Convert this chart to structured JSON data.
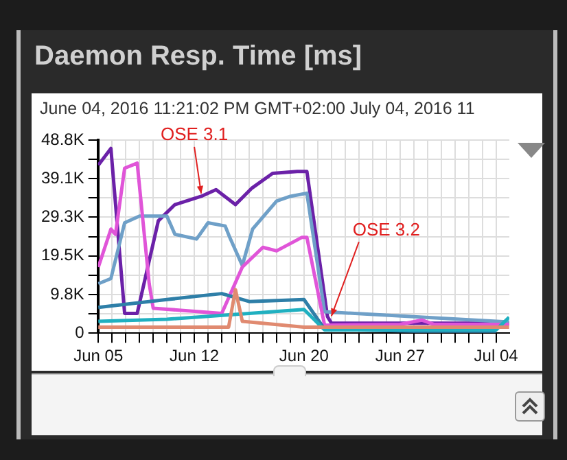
{
  "chart_data": {
    "type": "line",
    "title": "Daemon Resp. Time [ms]",
    "subtitle": "June 04, 2016 11:21:02 PM GMT+02:00 July 04, 2016 11",
    "xlim": [
      "2016-06-04T23:21",
      "2016-07-04T23:21"
    ],
    "xticks": [
      {
        "value": "2016-06-05",
        "label": "Jun 05"
      },
      {
        "value": "2016-06-06",
        "label": null
      },
      {
        "value": "2016-06-07",
        "label": null
      },
      {
        "value": "2016-06-08",
        "label": null
      },
      {
        "value": "2016-06-09",
        "label": null
      },
      {
        "value": "2016-06-10",
        "label": null
      },
      {
        "value": "2016-06-11",
        "label": null
      },
      {
        "value": "2016-06-12",
        "label": "Jun 12"
      },
      {
        "value": "2016-06-13",
        "label": null
      },
      {
        "value": "2016-06-14",
        "label": null
      },
      {
        "value": "2016-06-15",
        "label": null
      },
      {
        "value": "2016-06-16",
        "label": null
      },
      {
        "value": "2016-06-17",
        "label": null
      },
      {
        "value": "2016-06-18",
        "label": null
      },
      {
        "value": "2016-06-19",
        "label": null
      },
      {
        "value": "2016-06-20",
        "label": "Jun 20"
      },
      {
        "value": "2016-06-21",
        "label": null
      },
      {
        "value": "2016-06-22",
        "label": null
      },
      {
        "value": "2016-06-23",
        "label": null
      },
      {
        "value": "2016-06-24",
        "label": null
      },
      {
        "value": "2016-06-25",
        "label": null
      },
      {
        "value": "2016-06-26",
        "label": null
      },
      {
        "value": "2016-06-27",
        "label": "Jun 27"
      },
      {
        "value": "2016-06-28",
        "label": null
      },
      {
        "value": "2016-06-29",
        "label": null
      },
      {
        "value": "2016-06-30",
        "label": null
      },
      {
        "value": "2016-07-01",
        "label": null
      },
      {
        "value": "2016-07-02",
        "label": null
      },
      {
        "value": "2016-07-03",
        "label": null
      },
      {
        "value": "2016-07-04",
        "label": "Jul 04"
      }
    ],
    "ylim": [
      0,
      48830
    ],
    "yticks": [
      {
        "value": 0,
        "label": "0"
      },
      {
        "value": 4883,
        "label": null
      },
      {
        "value": 9766,
        "label": "9.8K"
      },
      {
        "value": 14649,
        "label": null
      },
      {
        "value": 19532,
        "label": "19.5K"
      },
      {
        "value": 24415,
        "label": null
      },
      {
        "value": 29298,
        "label": "29.3K"
      },
      {
        "value": 34181,
        "label": null
      },
      {
        "value": 39064,
        "label": "39.1K"
      },
      {
        "value": 43947,
        "label": null
      },
      {
        "value": 48830,
        "label": "48.8K"
      }
    ],
    "grid": true,
    "legend": false,
    "marker": "none",
    "line_style": "solid",
    "series": [
      {
        "color": "#e08a70",
        "x": [
          "2016-06-05T00:00",
          "2016-06-10T00:00",
          "2016-06-14T12:00",
          "2016-06-15T00:00",
          "2016-06-15T12:00",
          "2016-06-20T00:00",
          "2016-06-25T00:00",
          "2016-07-04T23:00"
        ],
        "values": [
          1500,
          1500,
          1500,
          11000,
          3000,
          1500,
          1500,
          1500
        ]
      },
      {
        "color": "#20b0c0",
        "x": [
          "2016-06-05T00:00",
          "2016-06-10T00:00",
          "2016-06-16T00:00",
          "2016-06-20T00:00",
          "2016-06-21T12:00",
          "2016-06-28T00:00",
          "2016-07-04T00:00",
          "2016-07-04T23:00"
        ],
        "values": [
          3000,
          3500,
          5000,
          6000,
          800,
          800,
          800,
          4000
        ]
      },
      {
        "color": "#2e7fa8",
        "x": [
          "2016-06-05T00:00",
          "2016-06-10T00:00",
          "2016-06-14T00:00",
          "2016-06-16T00:00",
          "2016-06-20T00:00",
          "2016-06-21T12:00",
          "2016-06-28T00:00",
          "2016-07-04T00:00"
        ],
        "values": [
          6500,
          8500,
          10000,
          8000,
          8500,
          1000,
          500,
          500
        ]
      },
      {
        "color": "#e055d8",
        "x": [
          "2016-06-05T00:00",
          "2016-06-05T22:00",
          "2016-06-06T06:00",
          "2016-06-06T22:00",
          "2016-06-07T20:00",
          "2016-06-08T17:00",
          "2016-06-09T00:00",
          "2016-06-14T00:00",
          "2016-06-15T12:00",
          "2016-06-17T00:00",
          "2016-06-18T00:00",
          "2016-06-19T20:00",
          "2016-06-20T05:00",
          "2016-06-21T12:00",
          "2016-06-27T00:00",
          "2016-06-28T14:00",
          "2016-06-29T12:00",
          "2016-07-04T23:00"
        ],
        "values": [
          16700,
          26300,
          25000,
          41700,
          43000,
          12500,
          6300,
          5000,
          16700,
          21700,
          20800,
          24200,
          24200,
          2000,
          2200,
          3300,
          2200,
          2200
        ]
      },
      {
        "color": "#6fa0c8",
        "x": [
          "2016-06-05T00:00",
          "2016-06-05T22:00",
          "2016-06-06T22:00",
          "2016-06-08T00:00",
          "2016-06-10T00:00",
          "2016-06-10T14:00",
          "2016-06-12T04:00",
          "2016-06-13T00:00",
          "2016-06-14T06:00",
          "2016-06-14T14:00",
          "2016-06-15T12:00",
          "2016-06-16T06:00",
          "2016-06-18T00:00",
          "2016-06-19T00:00",
          "2016-06-20T05:00",
          "2016-06-21T12:00",
          "2016-07-04T23:00"
        ],
        "values": [
          12500,
          13800,
          27900,
          29600,
          29600,
          25000,
          23800,
          27900,
          27100,
          24200,
          17100,
          26300,
          33400,
          34600,
          35400,
          5400,
          2800
        ]
      },
      {
        "color": "#6b21a8",
        "x": [
          "2016-06-05T00:00",
          "2016-06-05T22:00",
          "2016-06-06T22:00",
          "2016-06-07T20:00",
          "2016-06-09T09:00",
          "2016-06-10T14:00",
          "2016-06-12T12:00",
          "2016-06-13T14:00",
          "2016-06-15T00:00",
          "2016-06-16T05:00",
          "2016-06-17T17:00",
          "2016-06-19T12:00",
          "2016-06-20T05:00",
          "2016-06-21T17:00",
          "2016-06-22T00:00",
          "2016-07-04T23:00"
        ],
        "values": [
          42500,
          46700,
          5000,
          5000,
          28400,
          32500,
          34600,
          36300,
          32500,
          36700,
          40400,
          40900,
          40900,
          4200,
          2500,
          2500
        ]
      }
    ],
    "annotations": [
      {
        "text": "OSE 3.1",
        "x": "2016-06-12T12:00",
        "y": 34600
      },
      {
        "text": "OSE 3.2",
        "x": "2016-06-22T00:00",
        "y": 3600
      }
    ]
  }
}
